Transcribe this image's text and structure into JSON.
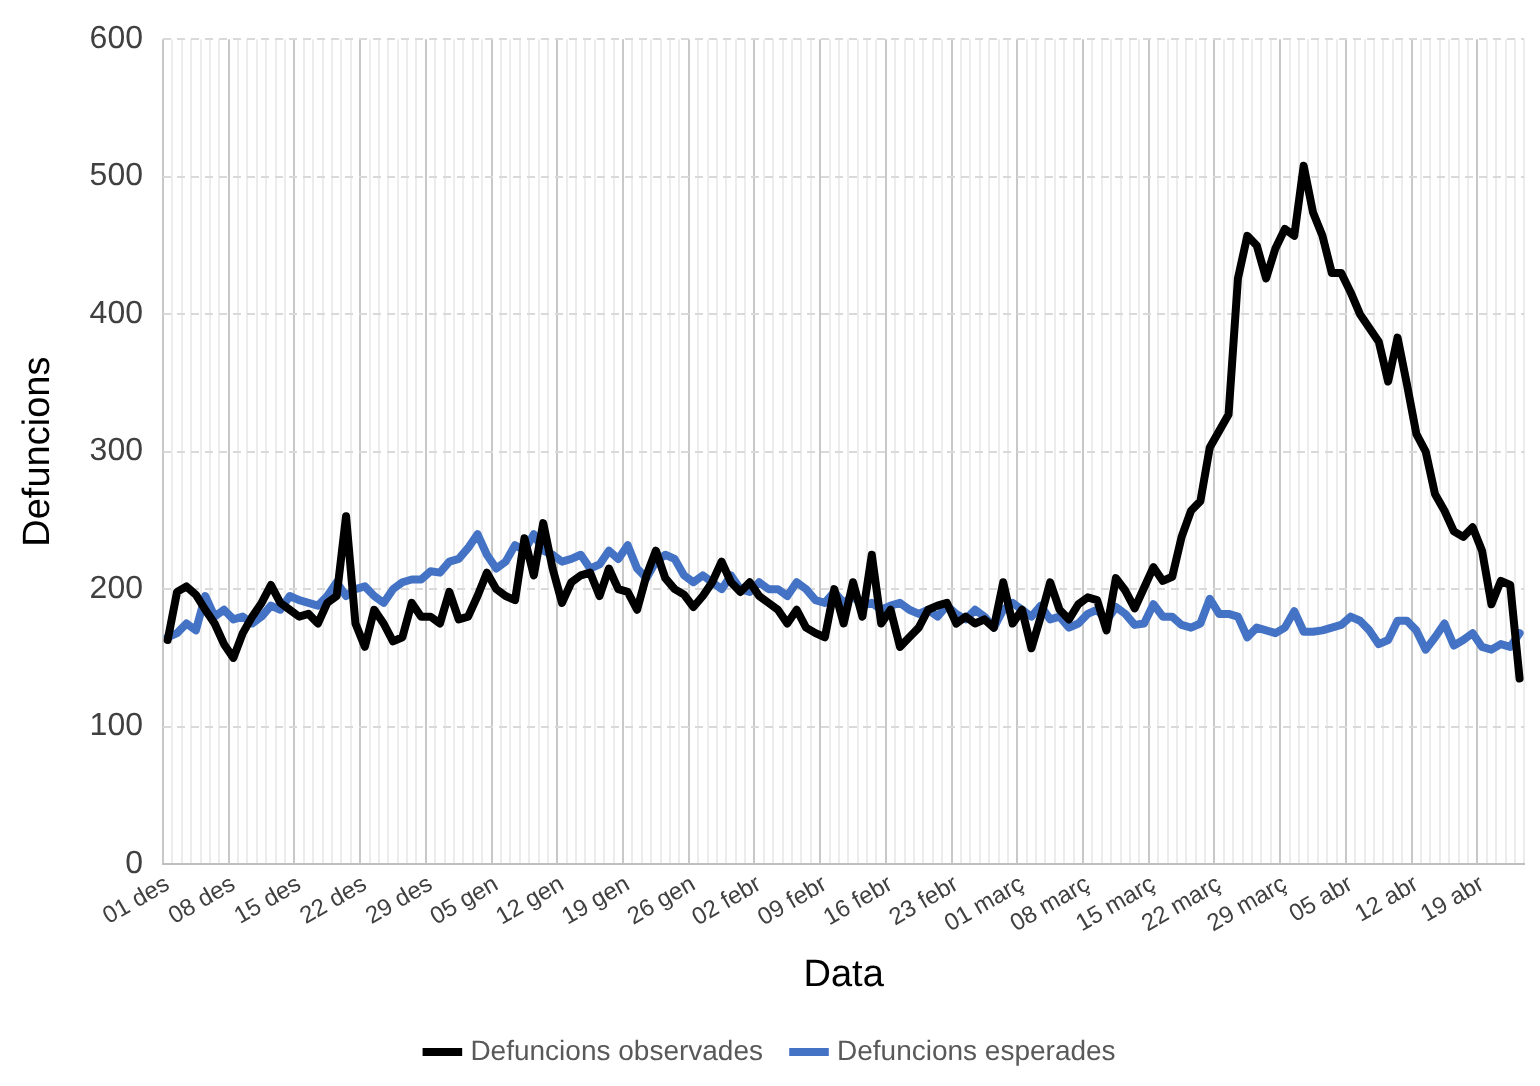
{
  "chart_data": {
    "type": "line",
    "xlabel": "Data",
    "ylabel": "Defuncions",
    "categories": [
      "01 des",
      null,
      null,
      null,
      null,
      null,
      null,
      "08 des",
      null,
      null,
      null,
      null,
      null,
      null,
      "15 des",
      null,
      null,
      null,
      null,
      null,
      null,
      "22 des",
      null,
      null,
      null,
      null,
      null,
      null,
      "29 des",
      null,
      null,
      null,
      null,
      null,
      null,
      "05 gen",
      null,
      null,
      null,
      null,
      null,
      null,
      "12 gen",
      null,
      null,
      null,
      null,
      null,
      null,
      "19 gen",
      null,
      null,
      null,
      null,
      null,
      null,
      "26 gen",
      null,
      null,
      null,
      null,
      null,
      null,
      "02 febr",
      null,
      null,
      null,
      null,
      null,
      null,
      "09 febr",
      null,
      null,
      null,
      null,
      null,
      null,
      "16 febr",
      null,
      null,
      null,
      null,
      null,
      null,
      "23 febr",
      null,
      null,
      null,
      null,
      null,
      null,
      "01 març",
      null,
      null,
      null,
      null,
      null,
      null,
      "08 març",
      null,
      null,
      null,
      null,
      null,
      null,
      "15 març",
      null,
      null,
      null,
      null,
      null,
      null,
      "22 març",
      null,
      null,
      null,
      null,
      null,
      null,
      "29 març",
      null,
      null,
      null,
      null,
      null,
      null,
      "05 abr",
      null,
      null,
      null,
      null,
      null,
      null,
      "12 abr",
      null,
      null,
      null,
      null,
      null,
      null,
      "19 abr",
      null,
      null,
      null,
      null
    ],
    "series": [
      {
        "name": "Defuncions observades",
        "color": "#000000",
        "values": [
          163,
          198,
          202,
          196,
          185,
          175,
          160,
          150,
          168,
          180,
          190,
          203,
          190,
          185,
          180,
          182,
          175,
          190,
          195,
          253,
          175,
          158,
          185,
          175,
          162,
          165,
          190,
          180,
          180,
          175,
          198,
          178,
          180,
          195,
          212,
          200,
          195,
          192,
          237,
          210,
          248,
          215,
          190,
          205,
          210,
          212,
          195,
          215,
          200,
          198,
          185,
          210,
          228,
          208,
          200,
          196,
          187,
          195,
          205,
          220,
          205,
          198,
          205,
          195,
          190,
          185,
          175,
          185,
          172,
          168,
          165,
          200,
          175,
          205,
          180,
          225,
          175,
          185,
          158,
          165,
          172,
          185,
          188,
          190,
          175,
          180,
          175,
          178,
          172,
          205,
          175,
          185,
          157,
          180,
          205,
          185,
          178,
          189,
          194,
          192,
          170,
          208,
          199,
          186,
          201,
          216,
          206,
          209,
          238,
          257,
          264,
          303,
          315,
          327,
          426,
          457,
          450,
          426,
          448,
          462,
          457,
          508,
          474,
          457,
          430,
          430,
          416,
          400,
          390,
          380,
          351,
          383,
          349,
          313,
          300,
          269,
          257,
          242,
          238,
          245,
          228,
          189,
          206,
          203,
          135
        ]
      },
      {
        "name": "Defuncions esperades",
        "color": "#4472c4",
        "values": [
          165,
          168,
          175,
          170,
          195,
          180,
          185,
          178,
          180,
          175,
          180,
          188,
          185,
          195,
          192,
          190,
          188,
          195,
          205,
          195,
          200,
          202,
          195,
          190,
          200,
          205,
          207,
          207,
          213,
          212,
          220,
          222,
          230,
          240,
          225,
          215,
          220,
          232,
          228,
          240,
          228,
          225,
          220,
          222,
          225,
          215,
          218,
          228,
          222,
          232,
          215,
          208,
          220,
          225,
          222,
          210,
          205,
          210,
          205,
          200,
          210,
          200,
          198,
          205,
          200,
          200,
          195,
          205,
          200,
          192,
          190,
          198,
          190,
          195,
          188,
          190,
          185,
          188,
          190,
          185,
          182,
          185,
          180,
          188,
          182,
          178,
          185,
          180,
          172,
          185,
          190,
          185,
          180,
          188,
          178,
          180,
          172,
          175,
          182,
          185,
          177,
          187,
          182,
          174,
          175,
          189,
          180,
          180,
          174,
          172,
          175,
          193,
          182,
          182,
          180,
          165,
          172,
          170,
          168,
          172,
          184,
          169,
          169,
          170,
          172,
          174,
          180,
          177,
          170,
          160,
          163,
          177,
          177,
          170,
          156,
          165,
          175,
          159,
          163,
          168,
          158,
          156,
          160,
          158,
          168
        ]
      }
    ],
    "ylim": [
      0,
      600
    ],
    "yticks": [
      0,
      100,
      200,
      300,
      400,
      500,
      600
    ],
    "grid": true,
    "legend": "bottom",
    "marker": "none",
    "line_style": "solid"
  }
}
